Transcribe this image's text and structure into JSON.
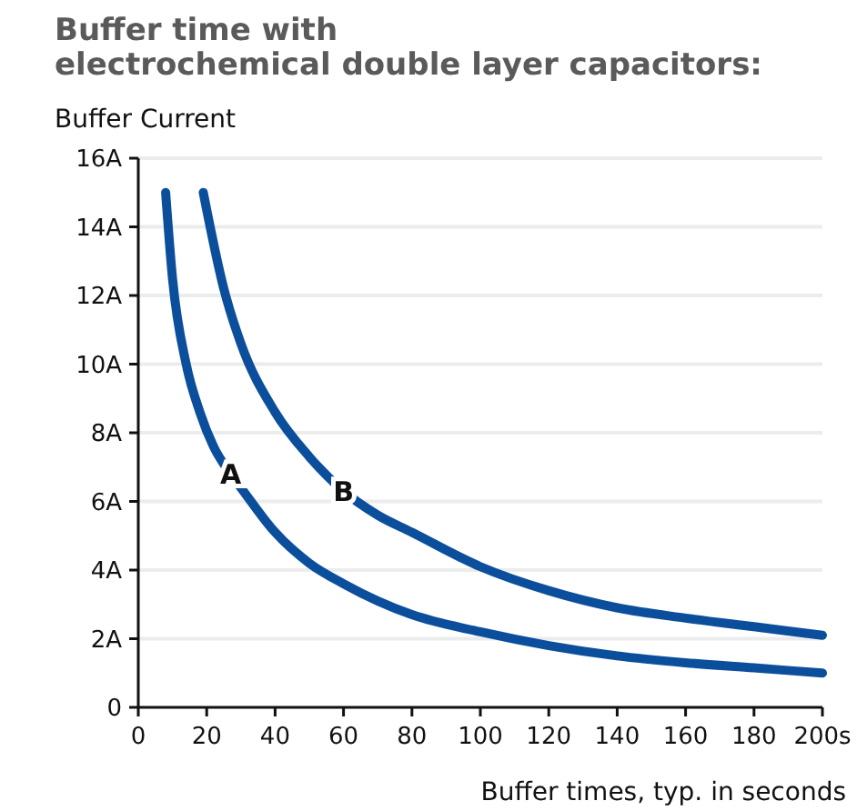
{
  "chart_data": {
    "type": "line",
    "title": "Buffer time with\nelectrochemical double layer capacitors:",
    "ylabel": "Buffer Current",
    "xlabel": "Buffer times, typ. in seconds",
    "xlim": [
      0,
      200
    ],
    "xticks": [
      0,
      20,
      40,
      60,
      80,
      100,
      120,
      140,
      160,
      180,
      {
        "value": 200,
        "label": "200s"
      }
    ],
    "ylim": [
      0,
      16
    ],
    "yticks": [
      0,
      {
        "value": 2,
        "label": "2A"
      },
      {
        "value": 4,
        "label": "4A"
      },
      {
        "value": 6,
        "label": "6A"
      },
      {
        "value": 8,
        "label": "8A"
      },
      {
        "value": 10,
        "label": "10A"
      },
      {
        "value": 12,
        "label": "12A"
      },
      {
        "value": 14,
        "label": "14A"
      },
      {
        "value": 16,
        "label": "16A"
      }
    ],
    "grid": "y",
    "marker": "none",
    "line_style": "solid",
    "series": [
      {
        "name": "A",
        "color": "#0b4f9c",
        "x": [
          8,
          10,
          14,
          18,
          22,
          27,
          30,
          40,
          50,
          60,
          80,
          100,
          120,
          140,
          160,
          180,
          200
        ],
        "values": [
          15,
          12.5,
          10,
          8.6,
          7.6,
          6.8,
          6.4,
          5.1,
          4.2,
          3.6,
          2.7,
          2.2,
          1.8,
          1.5,
          1.3,
          1.15,
          1.0
        ]
      },
      {
        "name": "B",
        "color": "#0b4f9c",
        "x": [
          19,
          25,
          30,
          40,
          50,
          60,
          70,
          80,
          100,
          120,
          140,
          160,
          180,
          200
        ],
        "values": [
          15,
          12.2,
          10.6,
          8.6,
          7.3,
          6.3,
          5.6,
          5.1,
          4.1,
          3.4,
          2.9,
          2.6,
          2.35,
          2.1
        ]
      }
    ]
  }
}
